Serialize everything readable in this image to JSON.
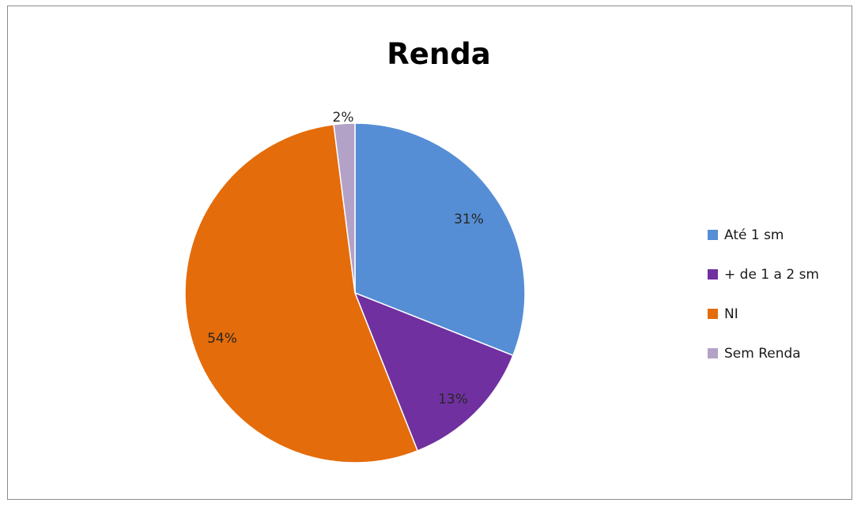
{
  "chart_data": {
    "type": "pie",
    "title": "Renda",
    "legend_position": "right",
    "start_angle_deg": 0,
    "direction": "clockwise",
    "series": [
      {
        "categories": [
          "Até 1 sm",
          "+ de 1 a 2 sm",
          "NI",
          "Sem Renda"
        ],
        "values": [
          31,
          13,
          54,
          2
        ],
        "labels": [
          "31%",
          "13%",
          "54%",
          "2%"
        ],
        "colors": [
          "#558ED5",
          "#7030A0",
          "#E46C0A",
          "#B3A2C7"
        ]
      }
    ]
  }
}
